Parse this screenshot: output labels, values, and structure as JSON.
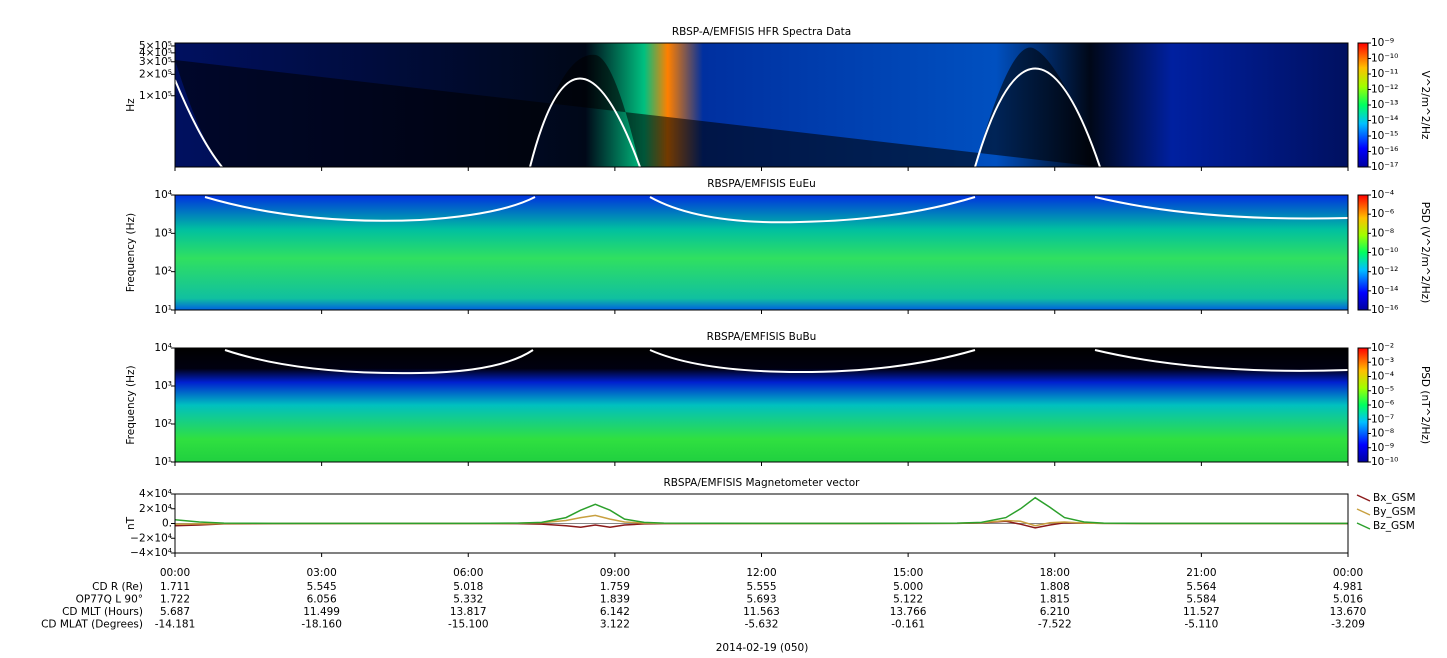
{
  "chart_data": [
    {
      "type": "spectrogram",
      "title": "RBSP-A/EMFISIS  HFR Spectra Data",
      "ylabel": "Hz",
      "log_y": true,
      "ylim": [
        10000,
        550000
      ],
      "yticks": [
        {
          "value": 500000,
          "label": "5×10⁵"
        },
        {
          "value": 400000,
          "label": "4×10⁵"
        },
        {
          "value": 300000,
          "label": "3×10⁵"
        },
        {
          "value": 200000,
          "label": "2×10⁵"
        },
        {
          "value": 100000,
          "label": "1×10⁵"
        }
      ],
      "colorbar": {
        "label": "V^2/m^2/Hz",
        "lim": [
          1e-17,
          1e-09
        ],
        "ticks": [
          {
            "value": 1e-09,
            "label": "10⁻⁹"
          },
          {
            "value": 1e-10,
            "label": "10⁻¹⁰"
          },
          {
            "value": 1e-11,
            "label": "10⁻¹¹"
          },
          {
            "value": 1e-12,
            "label": "10⁻¹²"
          },
          {
            "value": 1e-13,
            "label": "10⁻¹³"
          },
          {
            "value": 1e-14,
            "label": "10⁻¹⁴"
          },
          {
            "value": 1e-15,
            "label": "10⁻¹⁵"
          },
          {
            "value": 1e-16,
            "label": "10⁻¹⁶"
          },
          {
            "value": 1e-17,
            "label": "10⁻¹⁷"
          }
        ]
      }
    },
    {
      "type": "spectrogram",
      "title": "RBSPA/EMFISIS  EuEu",
      "ylabel": "Frequency (Hz)",
      "log_y": true,
      "ylim": [
        10,
        10000
      ],
      "yticks": [
        {
          "value": 10,
          "label": "10¹"
        },
        {
          "value": 100,
          "label": "10²"
        },
        {
          "value": 1000,
          "label": "10³"
        },
        {
          "value": 10000,
          "label": "10⁴"
        }
      ],
      "colorbar": {
        "label": "PSD (V^2/m^2/Hz)",
        "lim": [
          1e-16,
          0.0001
        ],
        "ticks": [
          {
            "value": 0.0001,
            "label": "10⁻⁴"
          },
          {
            "value": 1e-06,
            "label": "10⁻⁶"
          },
          {
            "value": 1e-08,
            "label": "10⁻⁸"
          },
          {
            "value": 1e-10,
            "label": "10⁻¹⁰"
          },
          {
            "value": 1e-12,
            "label": "10⁻¹²"
          },
          {
            "value": 1e-14,
            "label": "10⁻¹⁴"
          },
          {
            "value": 1e-16,
            "label": "10⁻¹⁶"
          }
        ]
      }
    },
    {
      "type": "spectrogram",
      "title": "RBSPA/EMFISIS  BuBu",
      "ylabel": "Frequency (Hz)",
      "log_y": true,
      "ylim": [
        10,
        10000
      ],
      "yticks": [
        {
          "value": 10,
          "label": "10¹"
        },
        {
          "value": 100,
          "label": "10²"
        },
        {
          "value": 1000,
          "label": "10³"
        },
        {
          "value": 10000,
          "label": "10⁴"
        }
      ],
      "colorbar": {
        "label": "PSD (nT^2/Hz)",
        "lim": [
          1e-10,
          0.01
        ],
        "ticks": [
          {
            "value": 0.01,
            "label": "10⁻²"
          },
          {
            "value": 0.001,
            "label": "10⁻³"
          },
          {
            "value": 0.0001,
            "label": "10⁻⁴"
          },
          {
            "value": 1e-05,
            "label": "10⁻⁵"
          },
          {
            "value": 1e-06,
            "label": "10⁻⁶"
          },
          {
            "value": 1e-07,
            "label": "10⁻⁷"
          },
          {
            "value": 1e-08,
            "label": "10⁻⁸"
          },
          {
            "value": 1e-09,
            "label": "10⁻⁹"
          },
          {
            "value": 1e-10,
            "label": "10⁻¹⁰"
          }
        ]
      }
    },
    {
      "type": "line",
      "title": "RBSPA/EMFISIS  Magnetometer vector",
      "ylabel": "nT",
      "legend": "right",
      "ylim": [
        -40000,
        40000
      ],
      "yticks": [
        {
          "value": 40000,
          "label": "4×10⁴"
        },
        {
          "value": 20000,
          "label": "2×10⁴"
        },
        {
          "value": 0,
          "label": "0."
        },
        {
          "value": -20000,
          "label": "−2×10⁴"
        },
        {
          "value": -40000,
          "label": "−4×10⁴"
        }
      ],
      "x": [
        0,
        0.5,
        1,
        2,
        4,
        6,
        7,
        7.5,
        8,
        8.3,
        8.6,
        8.9,
        9.2,
        9.6,
        10,
        12,
        14,
        16,
        16.5,
        17,
        17.3,
        17.6,
        17.9,
        18.2,
        18.6,
        19,
        20,
        22,
        24
      ],
      "series": [
        {
          "name": "Bx_GSM",
          "color": "#8b1a1a",
          "values": [
            -3000,
            -2000,
            -500,
            -100,
            0,
            0,
            -200,
            -800,
            -3000,
            -5000,
            -2000,
            -5000,
            -2000,
            -500,
            -100,
            0,
            0,
            200,
            800,
            3000,
            -1000,
            -6000,
            -2000,
            1000,
            500,
            200,
            0,
            0,
            -100
          ]
        },
        {
          "name": "By_GSM",
          "color": "#c8a040",
          "values": [
            -1000,
            -500,
            -200,
            0,
            0,
            0,
            300,
            1000,
            4000,
            8000,
            11000,
            6000,
            2000,
            500,
            100,
            0,
            0,
            300,
            1000,
            4000,
            3000,
            -3000,
            1000,
            2000,
            500,
            100,
            0,
            0,
            0
          ]
        },
        {
          "name": "Bz_GSM",
          "color": "#2ca02c",
          "values": [
            5000,
            2000,
            500,
            200,
            100,
            100,
            500,
            1500,
            8000,
            18000,
            26000,
            18000,
            6000,
            1500,
            500,
            100,
            100,
            500,
            1500,
            8000,
            20000,
            35000,
            22000,
            8000,
            2000,
            500,
            200,
            100,
            100
          ]
        }
      ]
    }
  ],
  "x_axis": {
    "xlim": [
      0,
      24
    ],
    "xticks": [
      {
        "value": 0,
        "label": "00:00"
      },
      {
        "value": 3,
        "label": "03:00"
      },
      {
        "value": 6,
        "label": "06:00"
      },
      {
        "value": 9,
        "label": "09:00"
      },
      {
        "value": 12,
        "label": "12:00"
      },
      {
        "value": 15,
        "label": "15:00"
      },
      {
        "value": 18,
        "label": "18:00"
      },
      {
        "value": 21,
        "label": "21:00"
      },
      {
        "value": 24,
        "label": "00:00"
      }
    ]
  },
  "ephemeris": {
    "rows": [
      {
        "label": "CD R (Re)",
        "values": [
          "1.711",
          "5.545",
          "5.018",
          "1.759",
          "5.555",
          "5.000",
          "1.808",
          "5.564",
          "4.981"
        ]
      },
      {
        "label": "OP77Q L 90°",
        "values": [
          "1.722",
          "6.056",
          "5.332",
          "1.839",
          "5.693",
          "5.122",
          "1.815",
          "5.584",
          "5.016"
        ]
      },
      {
        "label": "CD MLT (Hours)",
        "values": [
          "5.687",
          "11.499",
          "13.817",
          "6.142",
          "11.563",
          "13.766",
          "6.210",
          "11.527",
          "13.670"
        ]
      },
      {
        "label": "CD MLAT (Degrees)",
        "values": [
          "-14.181",
          "-18.160",
          "-15.100",
          "3.122",
          "-5.632",
          "-0.161",
          "-7.522",
          "-5.110",
          "-3.209"
        ]
      }
    ]
  },
  "date": "2014-02-19 (050)"
}
